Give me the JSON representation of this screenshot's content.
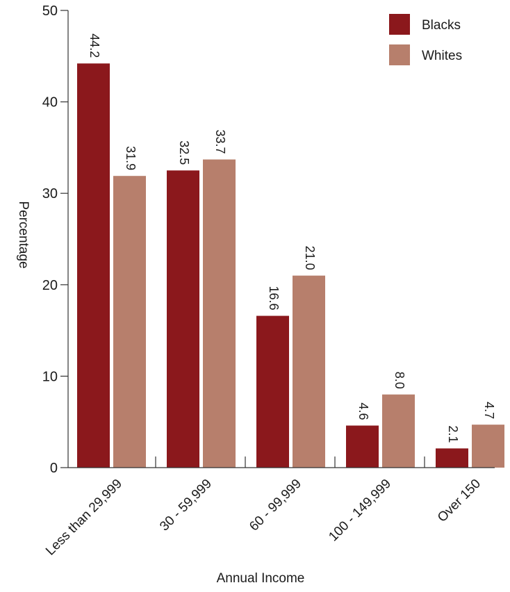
{
  "chart_data": {
    "type": "bar",
    "title": "",
    "xlabel": "Annual Income",
    "ylabel": "Percentage",
    "ylim": [
      0,
      50
    ],
    "yticks": [
      0,
      10,
      20,
      30,
      40,
      50
    ],
    "grid": false,
    "legend": {
      "position": "top-right"
    },
    "categories": [
      "Less than 29,999",
      "30 - 59,999",
      "60 - 99,999",
      "100 - 149,999",
      "Over 150"
    ],
    "series": [
      {
        "name": "Blacks",
        "color": "#8b181c",
        "values": [
          44.2,
          32.5,
          16.6,
          4.6,
          2.1
        ],
        "labels": [
          "44.2",
          "32.5",
          "16.6",
          "4.6",
          "2.1"
        ]
      },
      {
        "name": "Whites",
        "color": "#b77f6c",
        "values": [
          31.9,
          33.7,
          21.0,
          8.0,
          4.7
        ],
        "labels": [
          "31.9",
          "33.7",
          "21.0",
          "8.0",
          "4.7"
        ]
      }
    ]
  }
}
